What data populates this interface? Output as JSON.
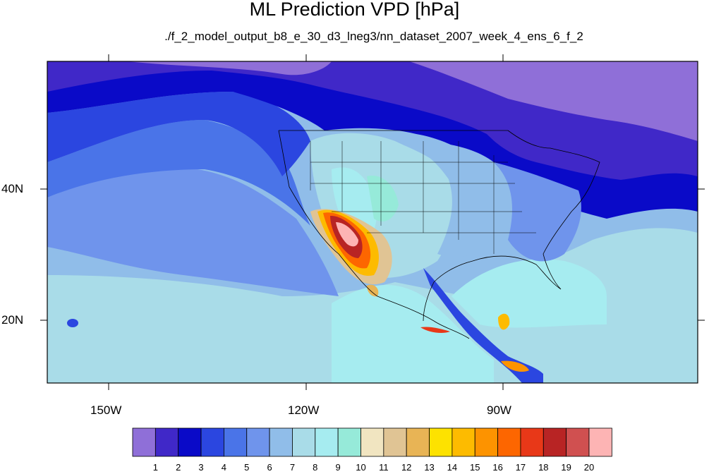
{
  "title": "ML Prediction VPD [hPa]",
  "subtitle": "./f_2_model_output_b8_e_30_d3_lneg3/nn_dataset_2007_week_4_ens_6_f_2",
  "latitude_labels": [
    "40N",
    "20N"
  ],
  "longitude_labels": [
    "150W",
    "120W",
    "90W"
  ],
  "colorbar": {
    "labels": [
      "1",
      "2",
      "3",
      "4",
      "5",
      "6",
      "7",
      "8",
      "9",
      "10",
      "11",
      "12",
      "13",
      "14",
      "15",
      "16",
      "17",
      "18",
      "19",
      "20"
    ],
    "colors": [
      "#8f6fd8",
      "#4028c8",
      "#0a0ac8",
      "#2b46e0",
      "#4a74e8",
      "#6f94ec",
      "#90bde9",
      "#a9dce8",
      "#a6ecf0",
      "#96ead9",
      "#f1e5c1",
      "#e0c494",
      "#e8b455",
      "#fde200",
      "#fdbb00",
      "#fd9300",
      "#fd6600",
      "#e83818",
      "#b82424",
      "#d05050",
      "#fdb4b4"
    ]
  },
  "map": {
    "projection": "cylindrical-equidistant",
    "lon_range": [
      -160,
      -60
    ],
    "lat_range": [
      10,
      59
    ]
  }
}
